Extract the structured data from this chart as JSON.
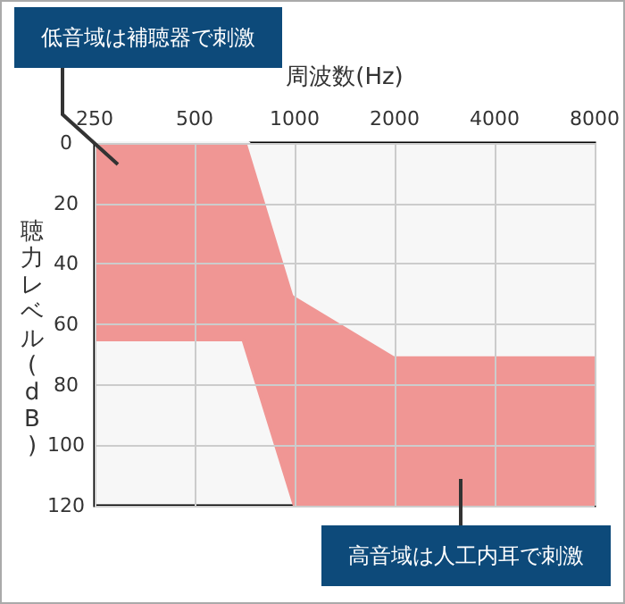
{
  "chart_data": {
    "type": "area",
    "xlabel": "周波数(Hz)",
    "ylabel": "聴力レベル(dB)",
    "annotations": [
      "低音域は補聴器で刺激",
      "高音域は人工内耳で刺激"
    ],
    "log": "x",
    "xlim": [
      250,
      8000
    ],
    "xticks": [
      250,
      500,
      1000,
      2000,
      4000,
      8000
    ],
    "ylim": [
      120,
      0
    ],
    "yticks": [
      0,
      20,
      40,
      60,
      80,
      100,
      120
    ],
    "grid": true,
    "series": [
      {
        "color": "#f09694",
        "x": [
          250,
          700,
          1000,
          8000
        ],
        "values": [
          65,
          65,
          120,
          120
        ]
      },
      {
        "color": "#f7f7f7",
        "x": [
          250,
          727,
          1000,
          2000,
          8000
        ],
        "values": [
          0,
          0,
          50,
          70,
          70
        ]
      }
    ]
  }
}
